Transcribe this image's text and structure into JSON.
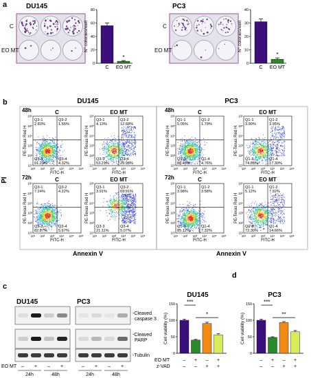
{
  "panel_a": {
    "letter": "a",
    "lines": [
      {
        "title": "DU145",
        "row_labels": [
          "C",
          "EO MT"
        ],
        "dot_density": [
          0.85,
          0.05
        ],
        "chart_data": {
          "type": "bar",
          "categories": [
            "C",
            "EO MT"
          ],
          "values": [
            56,
            3
          ],
          "errors": [
            4,
            1
          ],
          "ylim": [
            0,
            80
          ],
          "yticks": [
            "0",
            "20",
            "40",
            "60",
            "80"
          ],
          "ylabel": "N° colonies/well",
          "xlabel": "",
          "significance": [
            "",
            "*"
          ],
          "colors": [
            "#3b0f7a",
            "#2a8a2a"
          ]
        }
      },
      {
        "title": "PC3",
        "row_labels": [
          "C",
          "EO MT"
        ],
        "dot_density": [
          0.6,
          0.04
        ],
        "chart_data": {
          "type": "bar",
          "categories": [
            "C",
            "EO MT"
          ],
          "values": [
            31,
            3
          ],
          "errors": [
            2,
            1
          ],
          "ylim": [
            0,
            40
          ],
          "yticks": [
            "0",
            "10",
            "20",
            "30",
            "40"
          ],
          "ylabel": "N° colonies/well",
          "xlabel": "",
          "significance": [
            "",
            "*"
          ],
          "colors": [
            "#3b0f7a",
            "#2a8a2a"
          ]
        }
      }
    ]
  },
  "panel_b": {
    "letter": "b",
    "y_axis_title": "PI",
    "x_axis_title": "Annexin V",
    "dot_ylabel": "PE-Texas Red H",
    "dot_xlabel": "FITC-H",
    "axis_ticks": [
      "10¹",
      "10²",
      "10³",
      "10⁴",
      "10⁵",
      "10⁶"
    ],
    "lines": [
      {
        "title": "DU145",
        "rows": [
          {
            "time": "48h",
            "plots": [
              {
                "condition": "C",
                "q1_name": "Q3-1",
                "q1": "2.83%",
                "q2_name": "Q3-2",
                "q2": "1.55%",
                "q3_name": "Q3-3",
                "q3": "91.29%",
                "q4_name": "Q3-4",
                "q4": "4.32%"
              },
              {
                "condition": "EO MT",
                "q1_name": "Q3-1",
                "q1": "4.13%",
                "q2_name": "Q3-2",
                "q2": "12.68%",
                "q3_name": "Q3-3",
                "q3": "53.21%",
                "q4_name": "Q3-4",
                "q4": "29.98%"
              }
            ]
          },
          {
            "time": "72h",
            "plots": [
              {
                "condition": "C",
                "q1_name": "Q3-1",
                "q1": "7.24%",
                "q2_name": "Q3-2",
                "q2": "4.22%",
                "q3_name": "Q3-3",
                "q3": "82.87%",
                "q4_name": "Q3-4",
                "q4": "5.67%"
              },
              {
                "condition": "EO MT",
                "q1_name": "Q3-1",
                "q1": "3.91%",
                "q2_name": "Q3-2",
                "q2": "69.91%",
                "q3_name": "Q3-3",
                "q3": "21.11%",
                "q4_name": "Q3-4",
                "q4": "5.07%"
              }
            ]
          }
        ]
      },
      {
        "title": "PC3",
        "rows": [
          {
            "time": "48h",
            "plots": [
              {
                "condition": "C",
                "q1_name": "Q1-1",
                "q1": "5.05%",
                "q2_name": "Q1-2",
                "q2": "1.79%",
                "q3_name": "Q1-3",
                "q3": "88.40%",
                "q4_name": "Q1-4",
                "q4": "4.76%"
              },
              {
                "condition": "EO MT",
                "q1_name": "Q1-1",
                "q1": "3.90%",
                "q2_name": "Q1-2",
                "q2": "3.95%",
                "q3_name": "Q1-3",
                "q3": "74.85%",
                "q4_name": "Q1-4",
                "q4": "17.30%"
              }
            ]
          },
          {
            "time": "72h",
            "plots": [
              {
                "condition": "C",
                "q1_name": "Q1-1",
                "q1": "3.98%",
                "q2_name": "Q1-2",
                "q2": "3.58%",
                "q3_name": "Q1-3",
                "q3": "85.12%",
                "q4_name": "Q1-4",
                "q4": "7.32%"
              },
              {
                "condition": "EO MT",
                "q1_name": "Q1-1",
                "q1": "5.12%",
                "q2_name": "Q1-2",
                "q2": "7.92%",
                "q3_name": "Q1-3",
                "q3": "72.30%",
                "q4_name": "Q1-4",
                "q4": "14.66%"
              }
            ]
          }
        ]
      }
    ]
  },
  "panel_c": {
    "letter": "c",
    "lines": [
      "DU145",
      "PC3"
    ],
    "bands": [
      "Cleaved caspase 3",
      "Cleaved PARP",
      "Tubulin"
    ],
    "band_labels": [
      "-Cleaved",
      "caspase 3",
      "-Cleaved",
      "PARP",
      "-Tubulin"
    ],
    "treatment_label": "EO MT",
    "signs": [
      "–",
      "+",
      "–",
      "+"
    ],
    "timepoints": [
      "24h",
      "48h"
    ],
    "intensity": {
      "DU145": [
        [
          0.08,
          0.95,
          0.15,
          0.45
        ],
        [
          0.15,
          0.95,
          0.2,
          0.9
        ],
        [
          0.8,
          0.8,
          0.8,
          0.8
        ]
      ],
      "PC3": [
        [
          0.05,
          0.1,
          0.05,
          0.3
        ],
        [
          0.1,
          0.25,
          0.1,
          0.6
        ],
        [
          0.8,
          0.8,
          0.8,
          0.8
        ]
      ]
    }
  },
  "panel_d": {
    "letter": "d",
    "row_labels": [
      "EO MT",
      "z-VAD"
    ],
    "sign_rows": [
      [
        "–",
        "+",
        "–",
        "+"
      ],
      [
        "–",
        "–",
        "+",
        "+"
      ]
    ],
    "chart_data": [
      {
        "type": "bar",
        "title": "DU145",
        "categories": [
          "C",
          "EO MT",
          "z-VAD",
          "EO MT + z-VAD"
        ],
        "values": [
          100,
          40,
          90,
          56
        ],
        "errors": [
          3,
          2,
          4,
          3
        ],
        "ylim": [
          0,
          150
        ],
        "yticks": [
          "0",
          "50",
          "100",
          "150"
        ],
        "ylabel": "Cell viability (%)",
        "xlabel": "",
        "significance": [
          {
            "from": 0,
            "to": 1,
            "label": "***"
          },
          {
            "from": 1,
            "to": 3,
            "label": "*"
          }
        ],
        "colors": [
          "#3b0f7a",
          "#2a8a2a",
          "#f08a12",
          "#d8ec5a"
        ]
      },
      {
        "type": "bar",
        "title": "PC3",
        "categories": [
          "C",
          "EO MT",
          "z-VAD",
          "EO MT + z-VAD"
        ],
        "values": [
          100,
          48,
          93,
          65
        ],
        "errors": [
          3,
          2,
          3,
          4
        ],
        "ylim": [
          0,
          150
        ],
        "yticks": [
          "0",
          "50",
          "100",
          "150"
        ],
        "ylabel": "Cell viability (%)",
        "xlabel": "",
        "significance": [
          {
            "from": 0,
            "to": 1,
            "label": "***"
          },
          {
            "from": 1,
            "to": 3,
            "label": "**"
          }
        ],
        "colors": [
          "#3b0f7a",
          "#2a8a2a",
          "#f08a12",
          "#d8ec5a"
        ]
      }
    ]
  }
}
